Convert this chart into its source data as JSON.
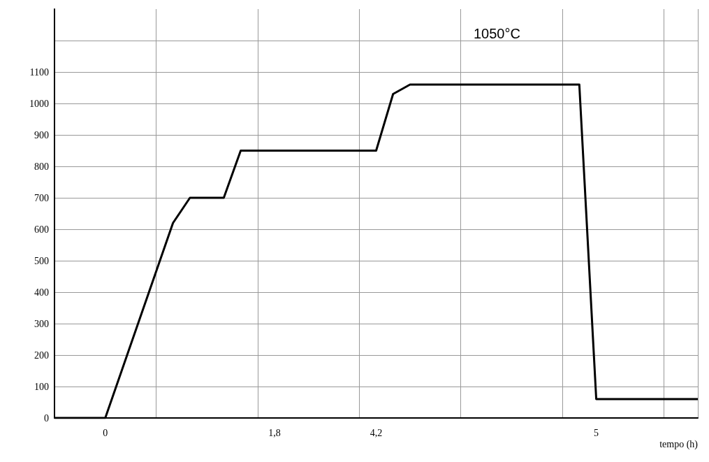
{
  "chart_data": {
    "type": "line",
    "xlabel": "tempo (h)",
    "categories": [
      null,
      null,
      null,
      "0",
      null,
      null,
      null,
      null,
      null,
      null,
      null,
      null,
      null,
      "1,8",
      null,
      null,
      null,
      null,
      null,
      "4,2",
      null,
      null,
      null,
      null,
      null,
      null,
      null,
      null,
      null,
      null,
      null,
      null,
      "5",
      null,
      null,
      null,
      null,
      null,
      null
    ],
    "series": [
      {
        "color": "#000000",
        "values": [
          0,
          0,
          0,
          0,
          155,
          310,
          465,
          620,
          700,
          700,
          700,
          850,
          850,
          850,
          850,
          850,
          850,
          850,
          850,
          850,
          1030,
          1060,
          1060,
          1060,
          1060,
          1060,
          1060,
          1060,
          1060,
          1060,
          1060,
          1060,
          60,
          60,
          60,
          60,
          60,
          60,
          60
        ]
      }
    ],
    "ylim": [
      0,
      1300
    ],
    "yticks": [
      0,
      100,
      200,
      300,
      400,
      500,
      600,
      700,
      800,
      900,
      1000,
      1100,
      {
        "value": 1200,
        "label": null
      }
    ],
    "grid": true,
    "marker": "none",
    "line_style": "solid",
    "annotations": [
      "1050°C"
    ]
  }
}
